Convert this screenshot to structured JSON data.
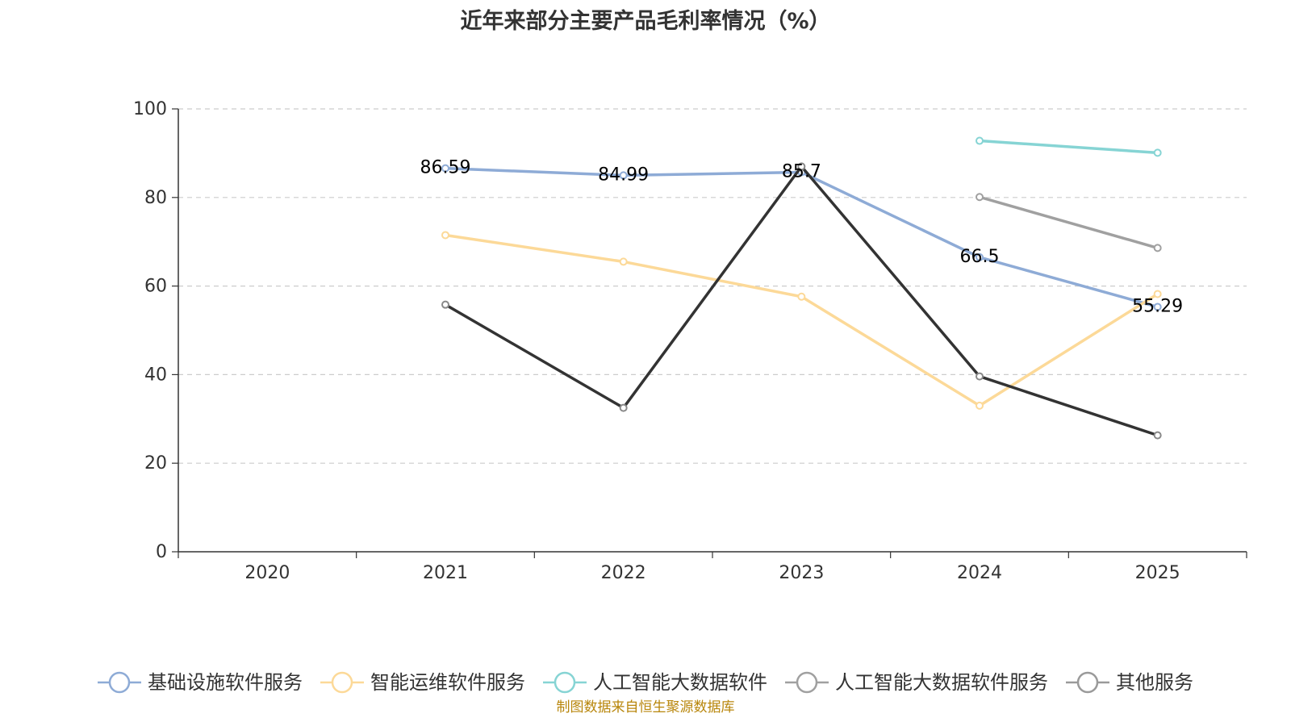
{
  "chart_data": {
    "type": "line",
    "title": "近年来部分主要产品毛利率情况（%）",
    "categories": [
      "2020",
      "2021",
      "2022",
      "2023",
      "2024",
      "2025"
    ],
    "ylim": [
      0,
      100
    ],
    "yticks": [
      0,
      20,
      40,
      60,
      80,
      100
    ],
    "grid": true,
    "legend_position": "bottom",
    "series": [
      {
        "name": "基础设施软件服务",
        "color": "#8eabd6",
        "values": [
          null,
          86.59,
          84.99,
          85.7,
          66.5,
          55.29
        ],
        "show_labels": true
      },
      {
        "name": "智能运维软件服务",
        "color": "#fcd998",
        "values": [
          null,
          71.5,
          65.5,
          57.6,
          33.0,
          58.2
        ],
        "show_labels": false
      },
      {
        "name": "人工智能大数据软件",
        "color": "#86d4d4",
        "values": [
          null,
          null,
          null,
          null,
          92.8,
          90.1
        ],
        "show_labels": false
      },
      {
        "name": "人工智能大数据软件服务",
        "color": "#a0a0a0",
        "values": [
          null,
          null,
          null,
          null,
          80.1,
          68.6
        ],
        "show_labels": false
      },
      {
        "name": "其他服务",
        "color": "#333333",
        "legend_color": "#9a9a9a",
        "values": [
          null,
          55.8,
          32.5,
          87.0,
          39.6,
          26.3
        ],
        "show_labels": false
      }
    ],
    "source": "制图数据来自恒生聚源数据库"
  }
}
